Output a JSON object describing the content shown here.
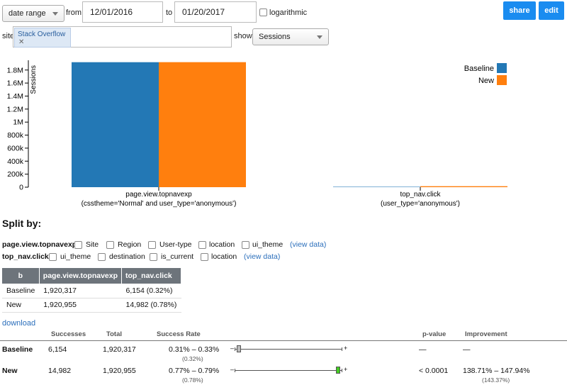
{
  "toolbar": {
    "range_mode": "date range",
    "from_label": "from",
    "from_value": "12/01/2016",
    "to_label": "to",
    "to_value": "01/20/2017",
    "log_label": "logarithmic",
    "share_label": "share",
    "edit_label": "edit",
    "site_label": "site",
    "site_tag": "Stack Overflow",
    "site_tag_remove": "✕",
    "show_label": "show",
    "show_value": "Sessions"
  },
  "chart_data": {
    "type": "bar",
    "ylabel": "Sessions",
    "ylim": [
      0,
      1950000
    ],
    "yticks": [
      0,
      200000,
      400000,
      600000,
      800000,
      1000000,
      1200000,
      1400000,
      1600000,
      1800000
    ],
    "ytick_labels": [
      "0",
      "200k",
      "400k",
      "600k",
      "800k",
      "1M",
      "1.2M",
      "1.4M",
      "1.6M",
      "1.8M"
    ],
    "categories": [
      [
        "page.view.topnavexp",
        "(csstheme='Normal' and user_type='anonymous')"
      ],
      [
        "top_nav.click",
        "(user_type='anonymous')"
      ]
    ],
    "series": [
      {
        "name": "Baseline",
        "color": "#2378b5",
        "values": [
          1920317,
          6154
        ]
      },
      {
        "name": "New",
        "color": "#ff7f0e",
        "values": [
          1920955,
          14982
        ]
      }
    ],
    "legend": "top-right"
  },
  "split": {
    "title": "Split by:",
    "rows": [
      {
        "label": "page.view.topnavexp:",
        "options": [
          "Site",
          "Region",
          "User-type",
          "location",
          "ui_theme"
        ],
        "link": "(view data)"
      },
      {
        "label": "top_nav.click:",
        "options": [
          "ui_theme",
          "destination",
          "is_current",
          "location"
        ],
        "link": "(view data)"
      }
    ]
  },
  "summary_table": {
    "headers": [
      "b",
      "page.view.topnavexp",
      "top_nav.click"
    ],
    "rows": [
      [
        "Baseline",
        "1,920,317",
        "6,154 (0.32%)"
      ],
      [
        "New",
        "1,920,955",
        "14,982 (0.78%)"
      ]
    ]
  },
  "download_label": "download",
  "results": {
    "headers": {
      "successes": "Successes",
      "total": "Total",
      "rate": "Success Rate",
      "pvalue": "p-value",
      "improvement": "Improvement"
    },
    "rows": [
      {
        "name": "Baseline",
        "successes": "6,154",
        "total": "1,920,317",
        "rate": "0.31% – 0.33%",
        "rate_point": "(0.32%)",
        "pvalue": "—",
        "improvement": "—",
        "improvement_point": "",
        "ci_low": 0.31,
        "ci_high": 0.33,
        "ci_color": "#bbbbbb"
      },
      {
        "name": "New",
        "successes": "14,982",
        "total": "1,920,955",
        "rate": "0.77% – 0.79%",
        "rate_point": "(0.78%)",
        "pvalue": "< 0.0001",
        "improvement": "138.71% – 147.94%",
        "improvement_point": "(143.37%)",
        "ci_low": 0.77,
        "ci_high": 0.79,
        "ci_color": "#44cc22"
      }
    ],
    "ci_range": [
      0.3,
      0.8
    ],
    "ci_minus": "–",
    "ci_plus": "+"
  }
}
